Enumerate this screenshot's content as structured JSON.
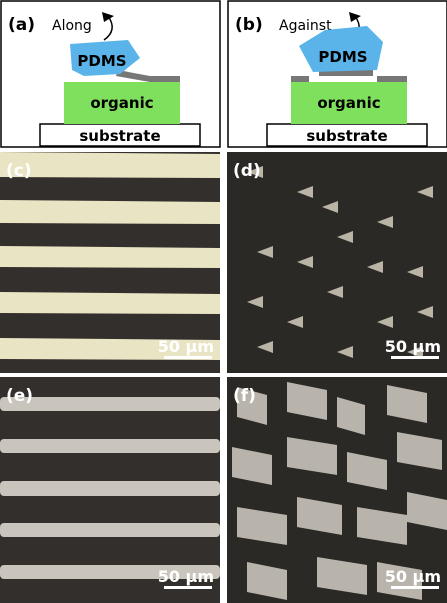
{
  "panels": [
    {
      "label": "(a)",
      "direction": "Along",
      "top_layer": "PDMS",
      "middle_layer": "organic",
      "bottom_layer": "substrate"
    },
    {
      "label": "(b)",
      "direction": "Against",
      "top_layer": "PDMS",
      "middle_layer": "organic",
      "bottom_layer": "substrate"
    }
  ],
  "micrographs": [
    {
      "label": "(c)",
      "scale_bar": "50 µm"
    },
    {
      "label": "(d)",
      "scale_bar": "50 µm"
    },
    {
      "label": "(e)",
      "scale_bar": "50 µm"
    },
    {
      "label": "(f)",
      "scale_bar": "50 µm"
    }
  ]
}
